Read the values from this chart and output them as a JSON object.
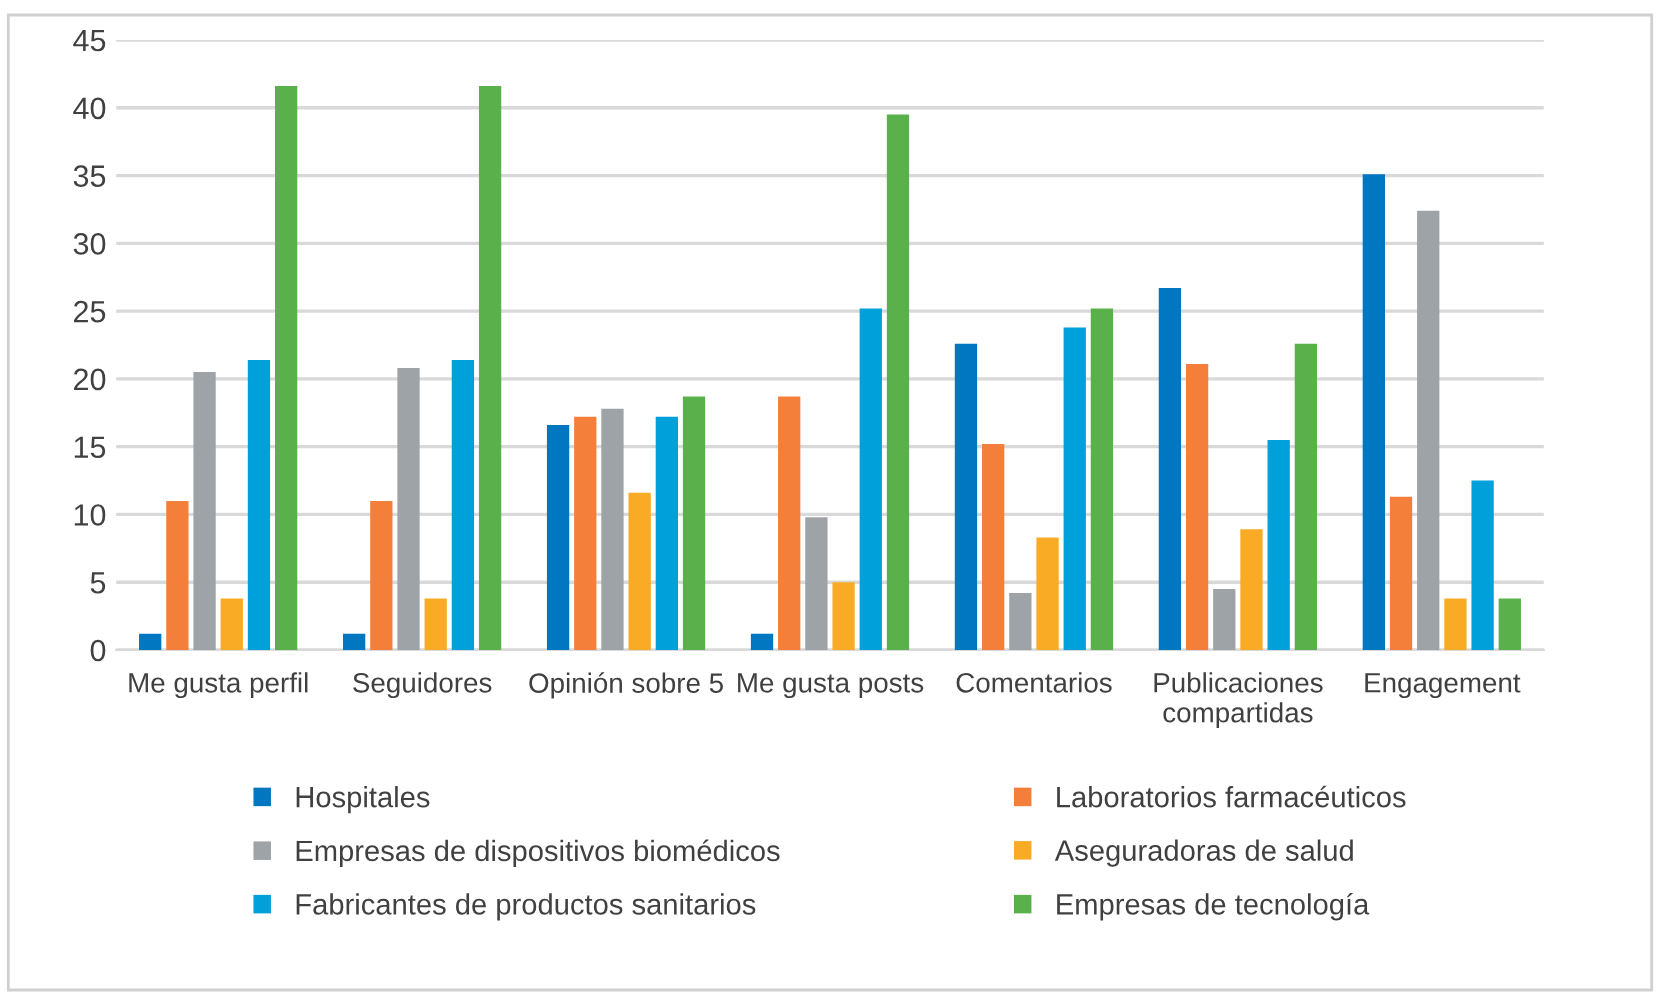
{
  "chart_data": {
    "type": "bar",
    "categories": [
      "Me gusta perfil",
      "Seguidores",
      "Opinión sobre 5",
      "Me gusta posts",
      "Comentarios",
      "Publicaciones\ncompartidas",
      "Engagement"
    ],
    "series": [
      {
        "name": "Hospitales",
        "color": "#0077c0",
        "values": [
          1.2,
          1.2,
          16.6,
          1.2,
          22.6,
          26.7,
          35.1
        ]
      },
      {
        "name": "Laboratorios farmacéuticos",
        "color": "#f47f3a",
        "values": [
          11.0,
          11.0,
          17.2,
          18.7,
          15.2,
          21.1,
          11.3
        ]
      },
      {
        "name": "Empresas de dispositivos biomédicos",
        "color": "#9ea3a8",
        "values": [
          20.5,
          20.8,
          17.8,
          9.8,
          4.2,
          4.5,
          32.4
        ]
      },
      {
        "name": "Aseguradoras de salud",
        "color": "#f9ab25",
        "values": [
          3.8,
          3.8,
          11.6,
          5.0,
          8.3,
          8.9,
          3.8
        ]
      },
      {
        "name": "Fabricantes de productos sanitarios",
        "color": "#00a0da",
        "values": [
          21.4,
          21.4,
          17.2,
          25.2,
          23.8,
          15.5,
          12.5
        ]
      },
      {
        "name": "Empresas de tecnología",
        "color": "#5ab14c",
        "values": [
          41.6,
          41.6,
          18.7,
          39.5,
          25.2,
          22.6,
          3.8
        ]
      }
    ],
    "ylim": [
      0,
      45
    ],
    "yticks": [
      0,
      5,
      10,
      15,
      20,
      25,
      30,
      35,
      40,
      45
    ],
    "grid": "y",
    "legend": "bottom"
  }
}
